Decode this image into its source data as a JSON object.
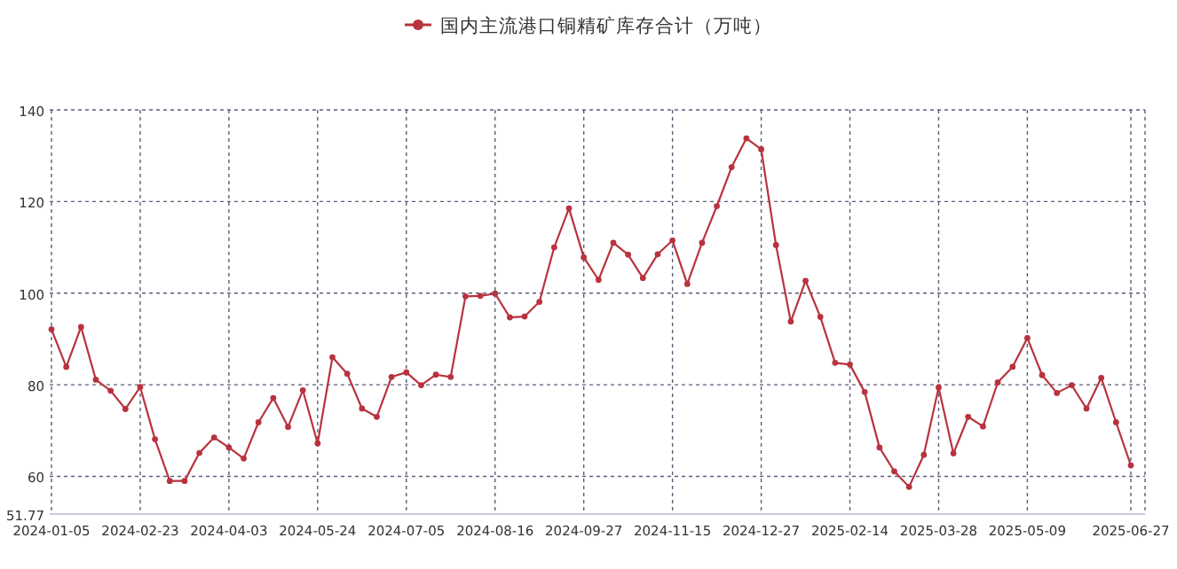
{
  "chart_data": {
    "type": "line",
    "categories": [
      "2024-01-05",
      null,
      null,
      null,
      null,
      null,
      "2024-02-23",
      null,
      null,
      null,
      null,
      null,
      "2024-04-03",
      null,
      null,
      null,
      null,
      null,
      "2024-05-24",
      null,
      null,
      null,
      null,
      null,
      "2024-07-05",
      null,
      null,
      null,
      null,
      null,
      "2024-08-16",
      null,
      null,
      null,
      null,
      null,
      "2024-09-27",
      null,
      null,
      null,
      null,
      null,
      "2024-11-15",
      null,
      null,
      null,
      null,
      null,
      "2024-12-27",
      null,
      null,
      null,
      null,
      null,
      "2025-02-14",
      null,
      null,
      null,
      null,
      null,
      "2025-03-28",
      null,
      null,
      null,
      null,
      null,
      "2025-05-09",
      null,
      null,
      null,
      null,
      null,
      null,
      "2025-06-27"
    ],
    "series": [
      {
        "name": "国内主流港口铜精矿库存合计（万吨）",
        "color": "#b8333e",
        "values": [
          92.1,
          83.9,
          92.6,
          81.1,
          78.7,
          74.7,
          79.5,
          68.1,
          59,
          59,
          65.1,
          68.5,
          66.3,
          63.9,
          71.8,
          77.1,
          70.8,
          78.8,
          67.2,
          86,
          82.4,
          74.8,
          73,
          81.7,
          82.7,
          79.9,
          82.2,
          81.7,
          99.3,
          99.4,
          99.9,
          94.7,
          94.9,
          98.1,
          110,
          118.5,
          107.8,
          102.9,
          111,
          108.4,
          103.3,
          108.5,
          111.5,
          102,
          111,
          119,
          127.5,
          133.8,
          131.4,
          110.5,
          93.8,
          102.7,
          94.8,
          84.8,
          84.4,
          78.4,
          66.3,
          61.1,
          57.7,
          64.7,
          79.4,
          65,
          73,
          70.9,
          80.5,
          83.9,
          90.2,
          82.1,
          78.2,
          79.9,
          74.8,
          81.5,
          71.8,
          62.4
        ]
      }
    ],
    "ylim": [
      51.77,
      140
    ],
    "yticks": [
      51.77,
      60,
      80,
      100,
      120,
      140
    ],
    "grid": true,
    "legend": "top",
    "marker": "circle",
    "line_style": "solid"
  }
}
